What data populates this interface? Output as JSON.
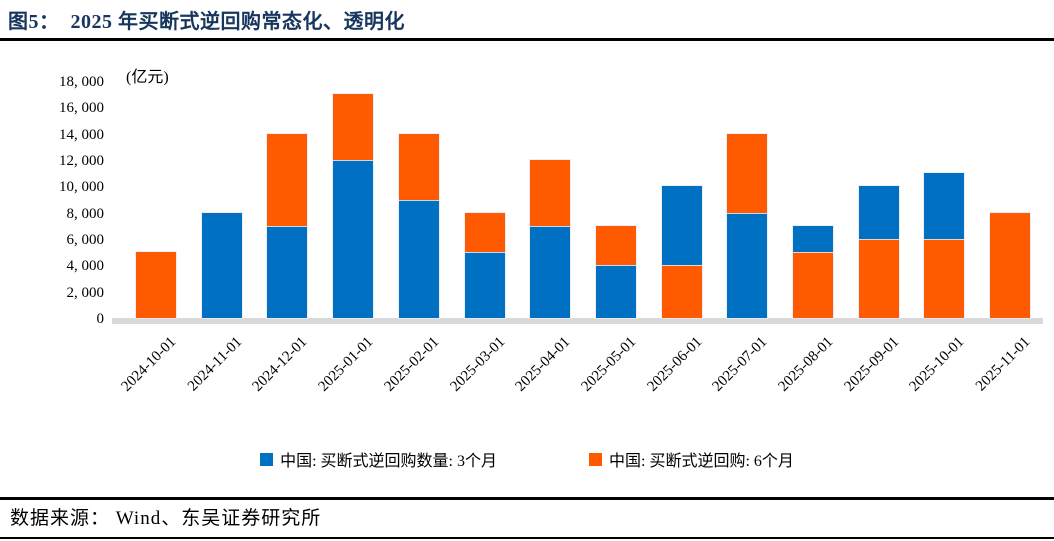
{
  "header": {
    "title": "图5：  2025 年买断式逆回购常态化、透明化"
  },
  "footer": {
    "source": "数据来源： Wind、东吴证券研究所"
  },
  "colors": {
    "series_3m_blue": "#0071C2",
    "series_6m_orange": "#FF5A00",
    "title_navy": "#17365D",
    "baseline_gray": "#D9D9D9",
    "divider_black": "#000000"
  },
  "chart_data": {
    "type": "bar",
    "stacked": true,
    "title": "2025 年买断式逆回购常态化、透明化",
    "unit_label": "(亿元)",
    "ylim": [
      0,
      18000
    ],
    "ytick_step": 2000,
    "yticks_top_to_bottom": [
      "18, 000",
      "16, 000",
      "14, 000",
      "12, 000",
      "10, 000",
      "8, 000",
      "6, 000",
      "4, 000",
      "2, 000",
      "0"
    ],
    "grid": false,
    "legend_position": "bottom",
    "categories": [
      "2024-10-01",
      "2024-11-01",
      "2024-12-01",
      "2025-01-01",
      "2025-02-01",
      "2025-03-01",
      "2025-04-01",
      "2025-05-01",
      "2025-06-01",
      "2025-07-01",
      "2025-08-01",
      "2025-09-01",
      "2025-10-01",
      "2025-11-01"
    ],
    "series": [
      {
        "key": "3m",
        "name": "中国: 买断式逆回购数量: 3个月",
        "color_key": "series_3m_blue",
        "values": [
          0,
          8000,
          7000,
          12000,
          9000,
          5000,
          7000,
          4000,
          6000,
          8000,
          2000,
          4000,
          5000,
          0
        ]
      },
      {
        "key": "6m",
        "name": "中国: 买断式逆回购: 6个月",
        "color_key": "series_6m_orange",
        "values": [
          5000,
          0,
          7000,
          5000,
          5000,
          3000,
          5000,
          3000,
          4000,
          6000,
          5000,
          6000,
          6000,
          8000
        ]
      }
    ],
    "bottom_series_per_category": [
      "6m",
      "3m",
      "3m",
      "3m",
      "3m",
      "3m",
      "3m",
      "3m",
      "6m",
      "3m",
      "6m",
      "6m",
      "6m",
      "6m"
    ],
    "totals": [
      5000,
      8000,
      14000,
      17000,
      14000,
      8000,
      12000,
      7000,
      10000,
      14000,
      7000,
      10000,
      11000,
      8000
    ],
    "legend": [
      {
        "label": "中国: 买断式逆回购数量: 3个月",
        "series_key": "3m"
      },
      {
        "label": "中国: 买断式逆回购: 6个月",
        "series_key": "6m"
      }
    ]
  }
}
